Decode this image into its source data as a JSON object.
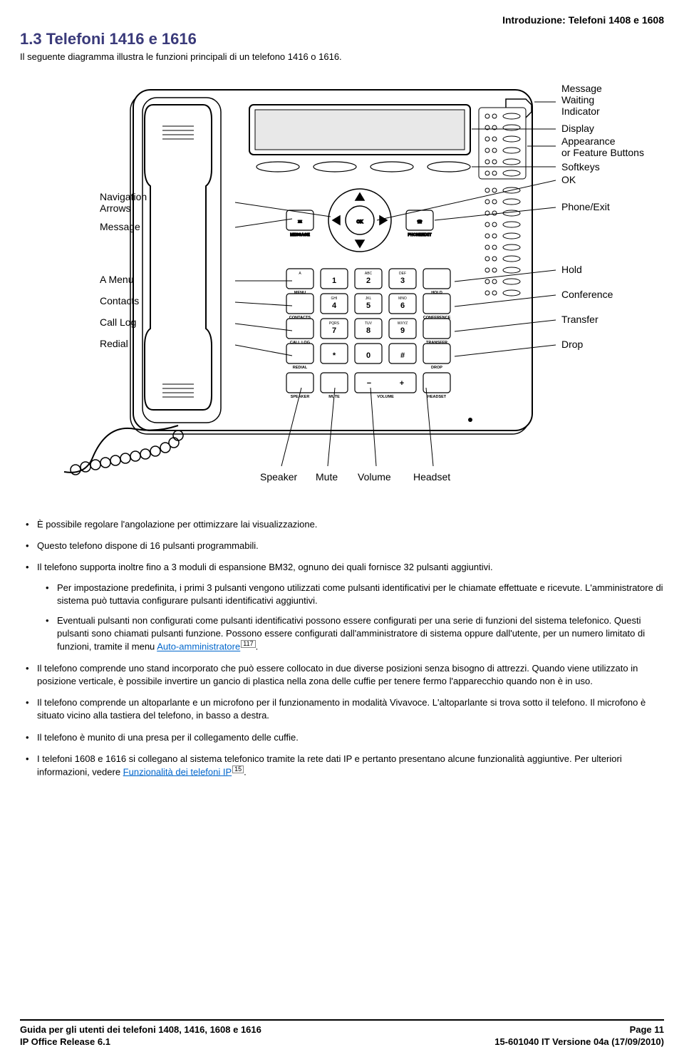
{
  "header_right": "Introduzione: Telefoni 1408 e 1608",
  "section_title": "1.3 Telefoni 1416 e 1616",
  "section_subtitle": "Il seguente diagramma illustra le funzioni principali di un telefono 1416 o 1616.",
  "diagram": {
    "left_labels": [
      "Navigation",
      "Arrows",
      "Message",
      "A Menu",
      "Contacts",
      "Call Log",
      "Redial"
    ],
    "right_labels": [
      "Message",
      "Waiting",
      "Indicator",
      "Display",
      "Appearance",
      "or Feature Buttons",
      "Softkeys",
      "OK",
      "Phone/Exit",
      "Hold",
      "Conference",
      "Transfer",
      "Drop"
    ],
    "bottom_labels": [
      "Speaker",
      "Mute",
      "Volume",
      "Headset"
    ],
    "ok_label": "OK",
    "btn_message": "MESSAGE",
    "btn_phoneexit": "PHONE/EXIT",
    "keys": {
      "r1": [
        {
          "top": "A",
          "big": "",
          "bot": "MENU"
        },
        {
          "top": "",
          "big": "1",
          "bot": ""
        },
        {
          "top": "ABC",
          "big": "2",
          "bot": ""
        },
        {
          "top": "DEF",
          "big": "3",
          "bot": ""
        },
        {
          "top": "",
          "big": "",
          "bot": "HOLD"
        }
      ],
      "r2": [
        {
          "top": "",
          "big": "",
          "bot": "CONTACTS"
        },
        {
          "top": "GHI",
          "big": "4",
          "bot": ""
        },
        {
          "top": "JKL",
          "big": "5",
          "bot": ""
        },
        {
          "top": "MNO",
          "big": "6",
          "bot": ""
        },
        {
          "top": "",
          "big": "",
          "bot": "CONFERENCE"
        }
      ],
      "r3": [
        {
          "top": "",
          "big": "",
          "bot": "CALL LOG"
        },
        {
          "top": "PQRS",
          "big": "7",
          "bot": ""
        },
        {
          "top": "TUV",
          "big": "8",
          "bot": ""
        },
        {
          "top": "WXYZ",
          "big": "9",
          "bot": ""
        },
        {
          "top": "",
          "big": "",
          "bot": "TRANSFER"
        }
      ],
      "r4": [
        {
          "top": "",
          "big": "",
          "bot": "REDIAL"
        },
        {
          "top": "",
          "big": "*",
          "bot": ""
        },
        {
          "top": "",
          "big": "0",
          "bot": ""
        },
        {
          "top": "",
          "big": "#",
          "bot": ""
        },
        {
          "top": "",
          "big": "",
          "bot": "DROP"
        }
      ],
      "r5": [
        {
          "bot": "SPEAKER"
        },
        {
          "bot": "MUTE"
        },
        {
          "bot": "VOLUME"
        },
        {
          "bot": "HEADSET"
        }
      ]
    }
  },
  "bullets": {
    "b1": "È possibile regolare l'angolazione per ottimizzare lai visualizzazione.",
    "b2": "Questo telefono dispone di 16 pulsanti programmabili.",
    "b3": "Il telefono supporta inoltre fino a 3 moduli di espansione BM32, ognuno dei quali fornisce 32 pulsanti aggiuntivi.",
    "b3a": "Per impostazione predefinita, i primi 3 pulsanti vengono utilizzati come pulsanti identificativi per le chiamate effettuate e ricevute. L'amministratore di sistema può tuttavia configurare pulsanti identificativi aggiuntivi.",
    "b3b_pre": "Eventuali pulsanti non configurati come pulsanti identificativi possono essere configurati per una serie di funzioni del sistema telefonico. Questi pulsanti sono chiamati pulsanti funzione. Possono essere configurati dall'amministratore di sistema oppure dall'utente, per un numero limitato di funzioni, tramite il menu ",
    "b3b_link": "Auto-amministratore",
    "b3b_ref": "117",
    "b4": "Il telefono comprende uno stand incorporato che può essere collocato in due diverse posizioni senza bisogno di attrezzi. Quando viene utilizzato in posizione verticale, è possibile invertire un gancio di plastica nella zona delle cuffie per tenere fermo l'apparecchio quando non è in uso.",
    "b5": "Il telefono comprende un altoparlante e un microfono per il funzionamento in modalità Vivavoce. L'altoparlante si trova sotto il telefono. Il microfono è situato vicino alla tastiera del telefono, in basso a destra.",
    "b6": "Il telefono è munito di una presa per il collegamento delle cuffie.",
    "b7_pre": "I telefoni 1608 e 1616 si collegano al sistema telefonico tramite la rete dati IP e pertanto presentano alcune funzionalità aggiuntive. Per ulteriori informazioni, vedere ",
    "b7_link": "Funzionalità dei telefoni IP",
    "b7_ref": "15"
  },
  "footer": {
    "left1": "Guida per gli utenti dei telefoni 1408, 1416, 1608 e 1616",
    "left2": "IP Office Release 6.1",
    "right1": "Page 11",
    "right2": "15-601040 IT Versione 04a (17/09/2010)"
  },
  "colors": {
    "title": "#3a3a7a",
    "link": "#0066cc",
    "text": "#000000",
    "rule": "#000000"
  }
}
